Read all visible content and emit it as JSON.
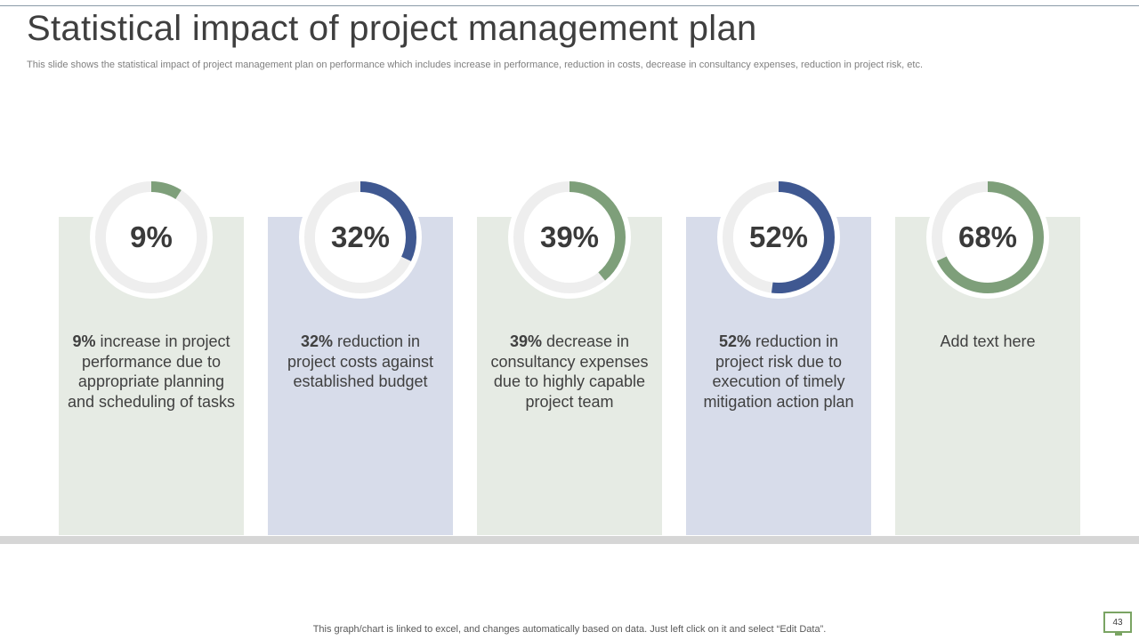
{
  "title": "Statistical impact of project management plan",
  "subtitle": "This slide shows the statistical impact of project management plan on performance which includes increase in performance, reduction in costs, decrease in consultancy expenses, reduction in project risk, etc.",
  "footer": "This graph/chart is linked to excel,  and changes automatically based on data. Just left click on it and select “Edit Data”.",
  "page_number": "43",
  "colors": {
    "green": "#7e9f7a",
    "blue": "#3f5891",
    "track": "#eeeeee",
    "panel_green": "#e6ebe4",
    "panel_blue": "#d7dcea"
  },
  "cards": [
    {
      "value_label": "9%",
      "bold": "9%",
      "text": " increase in project performance due to appropriate planning and scheduling of tasks",
      "color": "green"
    },
    {
      "value_label": "32%",
      "bold": "32%",
      "text": " reduction in project costs against established budget",
      "color": "blue"
    },
    {
      "value_label": "39%",
      "bold": "39%",
      "text": " decrease in consultancy expenses due to highly capable project team",
      "color": "green"
    },
    {
      "value_label": "52%",
      "bold": "52%",
      "text": " reduction in project risk due to execution of timely mitigation action plan",
      "color": "blue"
    },
    {
      "value_label": "68%",
      "bold": "",
      "text": "Add text here",
      "color": "green"
    }
  ],
  "chart_data": {
    "type": "donut",
    "categories": [
      "Project performance",
      "Project costs",
      "Consultancy expenses",
      "Project risk",
      "Add text here"
    ],
    "values": [
      9,
      32,
      39,
      52,
      68
    ],
    "unit": "%",
    "ylim": [
      0,
      100
    ]
  }
}
